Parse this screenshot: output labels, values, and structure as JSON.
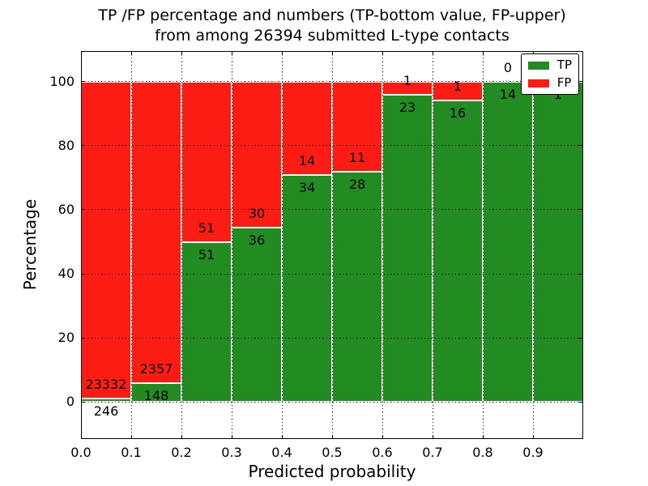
{
  "figure": {
    "title_line1": "TP /FP percentage and numbers (TP-bottom value, FP-upper)",
    "title_line2": "from among 26394 submitted L-type contacts"
  },
  "axes": {
    "xlabel": "Predicted probability",
    "ylabel": "Percentage"
  },
  "legend": {
    "position": "upper right",
    "items": [
      {
        "label": "TP"
      },
      {
        "label": "FP"
      }
    ]
  },
  "colors": {
    "tp": "#228b22",
    "fp": "#fb1d13",
    "text": "#000000",
    "background": "#ffffff",
    "grid": "#000000"
  },
  "chart_data": {
    "type": "bar",
    "stacked": true,
    "normalized_to_percent": true,
    "title": "TP /FP percentage and numbers (TP-bottom value, FP-upper) from among 26394 submitted L-type contacts",
    "xlabel": "Predicted probability",
    "ylabel": "Percentage",
    "total_contacts": 26394,
    "bin_edges": [
      0.0,
      0.1,
      0.2,
      0.3,
      0.4,
      0.5,
      0.6,
      0.7,
      0.8,
      0.9,
      1.0
    ],
    "xticklabels": [
      "0.0",
      "0.1",
      "0.2",
      "0.3",
      "0.4",
      "0.5",
      "0.6",
      "0.7",
      "0.8",
      "0.9"
    ],
    "yticks": [
      0,
      20,
      40,
      60,
      80,
      100
    ],
    "xlim": [
      0,
      1
    ],
    "ylim": [
      -11.5,
      109.5
    ],
    "grid": true,
    "legend_position": "upper right",
    "series": [
      {
        "name": "TP",
        "color": "#228b22",
        "values": [
          246,
          148,
          51,
          36,
          34,
          28,
          23,
          16,
          14,
          1
        ]
      },
      {
        "name": "FP",
        "color": "#fb1d13",
        "values": [
          23332,
          2357,
          51,
          30,
          14,
          11,
          1,
          1,
          0,
          0
        ]
      }
    ],
    "tp_percent_by_bin": [
      1.04,
      5.91,
      50.0,
      54.55,
      70.83,
      71.79,
      95.83,
      94.12,
      100.0,
      100.0
    ]
  }
}
